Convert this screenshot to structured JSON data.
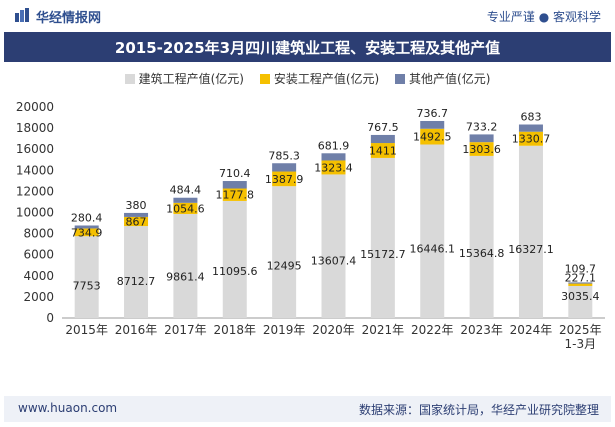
{
  "header": {
    "brand": "华经情报网",
    "tagline": "专业严谨 ● 客观科学"
  },
  "footer": {
    "site": "www.huaon.com",
    "source": "数据来源：国家统计局，华经产业研究院整理"
  },
  "colors": {
    "building": "#d9d9d9",
    "install": "#f5c000",
    "other": "#6f7fa8",
    "titlebar": "#2c3e73"
  },
  "chart_data": {
    "type": "bar",
    "stacked": true,
    "title": "2015-2025年3月四川建筑业工程、安装工程及其他产值",
    "categories": [
      "2015年",
      "2016年",
      "2017年",
      "2018年",
      "2019年",
      "2020年",
      "2021年",
      "2022年",
      "2023年",
      "2024年",
      "2025年 1-3月"
    ],
    "series": [
      {
        "name": "建筑工程产值(亿元)",
        "values": [
          7753,
          8712.7,
          9861.4,
          11095.6,
          12495,
          13607.4,
          15172.7,
          16446.1,
          15364.8,
          16327.1,
          3035.4
        ]
      },
      {
        "name": "安装工程产值(亿元)",
        "values": [
          734.9,
          867,
          1054.6,
          1177.8,
          1387.9,
          1323.4,
          1411,
          1492.5,
          1303.6,
          1330.7,
          227.1
        ]
      },
      {
        "name": "其他产值(亿元)",
        "values": [
          280.4,
          380,
          484.4,
          710.4,
          785.3,
          681.9,
          767.5,
          736.7,
          733.2,
          683,
          109.7
        ]
      }
    ],
    "ylim": [
      0,
      20000
    ],
    "yticks": [
      0,
      2000,
      4000,
      6000,
      8000,
      10000,
      12000,
      14000,
      16000,
      18000,
      20000
    ],
    "legend_position": "top",
    "grid": false
  }
}
